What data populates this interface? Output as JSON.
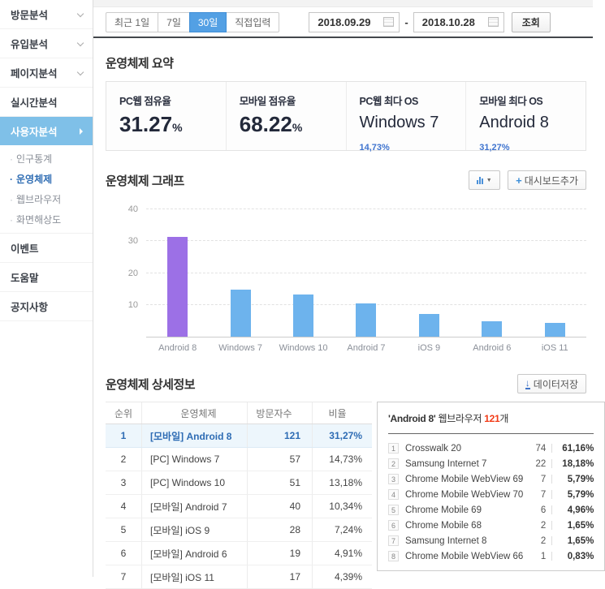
{
  "colors": {
    "accent_blue": "#53a0e4",
    "sidebar_active_bg": "#7fc0e8",
    "bar_blue": "#6db3ed",
    "bar_purple": "#9c70e6",
    "link_blue": "#3f74cf",
    "count_red": "#f23b17",
    "table_highlight_bg": "#edf6fc",
    "table_highlight_text": "#2e6cb4"
  },
  "sidebar": {
    "items": [
      {
        "label": "방문분석",
        "kind": "group",
        "chevron": "down"
      },
      {
        "label": "유입분석",
        "kind": "group",
        "chevron": "down"
      },
      {
        "label": "페이지분석",
        "kind": "group",
        "chevron": "down"
      },
      {
        "label": "실시간분석",
        "kind": "group"
      },
      {
        "label": "사용자분석",
        "kind": "group",
        "active": true,
        "chevron": "right"
      },
      {
        "label": "인구통계",
        "kind": "sub"
      },
      {
        "label": "운영체제",
        "kind": "sub",
        "active": true
      },
      {
        "label": "웹브라우저",
        "kind": "sub"
      },
      {
        "label": "화면해상도",
        "kind": "sub"
      },
      {
        "label": "이벤트",
        "kind": "group"
      },
      {
        "label": "도움말",
        "kind": "group"
      },
      {
        "label": "공지사항",
        "kind": "group"
      }
    ]
  },
  "toolbar": {
    "range_buttons": [
      {
        "label": "최근 1일",
        "active": false
      },
      {
        "label": "7일",
        "active": false
      },
      {
        "label": "30일",
        "active": true
      },
      {
        "label": "직접입력",
        "active": false
      }
    ],
    "date_from": "2018.09.29",
    "date_separator": "-",
    "date_to": "2018.10.28",
    "search_label": "조회"
  },
  "summary": {
    "title": "운영체제 요약",
    "cards": [
      {
        "label": "PC웹 점유율",
        "value": "31.27",
        "unit": "%",
        "style": "big"
      },
      {
        "label": "모바일 점유율",
        "value": "68.22",
        "unit": "%",
        "style": "big"
      },
      {
        "label": "PC웹 최다 OS",
        "value": "Windows 7",
        "sub": "14,73%",
        "style": "os"
      },
      {
        "label": "모바일 최다 OS",
        "value": "Android 8",
        "sub": "31,27%",
        "style": "os"
      }
    ]
  },
  "chart": {
    "title": "운영체제 그래프",
    "add_dashboard_label": "대시보드추가",
    "add_dashboard_plus": "+",
    "chart_type_caret": "▼"
  },
  "chart_data": {
    "type": "bar",
    "title": "운영체제 그래프",
    "categories": [
      "Android 8",
      "Windows 7",
      "Windows 10",
      "Android 7",
      "iOS 9",
      "Android 6",
      "iOS 11"
    ],
    "values": [
      31.27,
      14.73,
      13.18,
      10.34,
      7.24,
      4.91,
      4.39
    ],
    "bar_colors": [
      "#9c70e6",
      "#6db3ed",
      "#6db3ed",
      "#6db3ed",
      "#6db3ed",
      "#6db3ed",
      "#6db3ed"
    ],
    "xlabel": "",
    "ylabel": "",
    "ylim": [
      0,
      40
    ],
    "yticks": [
      10,
      20,
      30,
      40
    ],
    "grid": true,
    "legend": false
  },
  "details": {
    "title": "운영체제 상세정보",
    "save_label": "데이터저장",
    "save_icon": "↓",
    "table": {
      "headers": [
        "순위",
        "운영체제",
        "방문자수",
        "비율"
      ],
      "rows": [
        {
          "rank": "1",
          "os": "[모바일] Android 8",
          "visitors": "121",
          "ratio": "31,27%",
          "highlight": true
        },
        {
          "rank": "2",
          "os": "[PC] Windows 7",
          "visitors": "57",
          "ratio": "14,73%",
          "highlight": false
        },
        {
          "rank": "3",
          "os": "[PC] Windows 10",
          "visitors": "51",
          "ratio": "13,18%",
          "highlight": false
        },
        {
          "rank": "4",
          "os": "[모바일] Android 7",
          "visitors": "40",
          "ratio": "10,34%",
          "highlight": false
        },
        {
          "rank": "5",
          "os": "[모바일] iOS 9",
          "visitors": "28",
          "ratio": "7,24%",
          "highlight": false
        },
        {
          "rank": "6",
          "os": "[모바일] Android 6",
          "visitors": "19",
          "ratio": "4,91%",
          "highlight": false
        },
        {
          "rank": "7",
          "os": "[모바일] iOS 11",
          "visitors": "17",
          "ratio": "4,39%",
          "highlight": false
        }
      ]
    },
    "browser_panel": {
      "os_quoted": "'Android 8'",
      "label": "웹브라우저",
      "count": "121",
      "count_unit": "개",
      "rows": [
        {
          "rank": "1",
          "name": "Crosswalk 20",
          "count": "74",
          "ratio": "61,16%"
        },
        {
          "rank": "2",
          "name": "Samsung Internet 7",
          "count": "22",
          "ratio": "18,18%"
        },
        {
          "rank": "3",
          "name": "Chrome Mobile WebView 69",
          "count": "7",
          "ratio": "5,79%"
        },
        {
          "rank": "4",
          "name": "Chrome Mobile WebView 70",
          "count": "7",
          "ratio": "5,79%"
        },
        {
          "rank": "5",
          "name": "Chrome Mobile 69",
          "count": "6",
          "ratio": "4,96%"
        },
        {
          "rank": "6",
          "name": "Chrome Mobile 68",
          "count": "2",
          "ratio": "1,65%"
        },
        {
          "rank": "7",
          "name": "Samsung Internet 8",
          "count": "2",
          "ratio": "1,65%"
        },
        {
          "rank": "8",
          "name": "Chrome Mobile WebView 66",
          "count": "1",
          "ratio": "0,83%"
        }
      ]
    }
  }
}
